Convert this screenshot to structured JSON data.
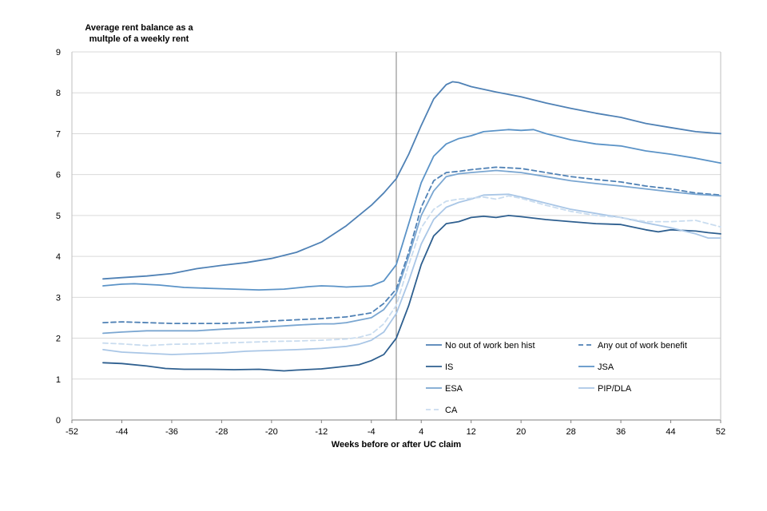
{
  "chart_data": {
    "type": "line",
    "ylabel": "Average rent balance as a multple of a weekly rent",
    "ylabel_lines": [
      "Average rent balance as a",
      "multple of a weekly rent"
    ],
    "xlabel": "Weeks before or after UC claim",
    "xlim": [
      -52,
      52
    ],
    "ylim": [
      0,
      9
    ],
    "xticks": [
      -52,
      -44,
      -36,
      -28,
      -20,
      -12,
      -4,
      4,
      12,
      20,
      28,
      36,
      44,
      52
    ],
    "yticks": [
      0,
      1,
      2,
      3,
      4,
      5,
      6,
      7,
      8,
      9
    ],
    "grid": "horizontal",
    "reference_line_x": 0,
    "legend_position": "bottom-right",
    "series": [
      {
        "name": "No out of work ben hist",
        "color": "#4f81b5",
        "dash": "solid",
        "points": [
          [
            -47,
            3.45
          ],
          [
            -44,
            3.48
          ],
          [
            -40,
            3.52
          ],
          [
            -36,
            3.58
          ],
          [
            -32,
            3.7
          ],
          [
            -28,
            3.78
          ],
          [
            -24,
            3.85
          ],
          [
            -20,
            3.95
          ],
          [
            -16,
            4.1
          ],
          [
            -12,
            4.35
          ],
          [
            -8,
            4.75
          ],
          [
            -4,
            5.25
          ],
          [
            -2,
            5.55
          ],
          [
            0,
            5.9
          ],
          [
            2,
            6.5
          ],
          [
            4,
            7.2
          ],
          [
            6,
            7.85
          ],
          [
            8,
            8.2
          ],
          [
            9,
            8.27
          ],
          [
            10,
            8.25
          ],
          [
            12,
            8.15
          ],
          [
            16,
            8.02
          ],
          [
            20,
            7.9
          ],
          [
            24,
            7.75
          ],
          [
            28,
            7.62
          ],
          [
            32,
            7.5
          ],
          [
            36,
            7.4
          ],
          [
            40,
            7.25
          ],
          [
            44,
            7.15
          ],
          [
            48,
            7.05
          ],
          [
            52,
            7.0
          ]
        ]
      },
      {
        "name": "Any out of work benefit",
        "color": "#4f81b5",
        "dash": "dashed",
        "points": [
          [
            -47,
            2.38
          ],
          [
            -44,
            2.4
          ],
          [
            -40,
            2.38
          ],
          [
            -36,
            2.36
          ],
          [
            -32,
            2.36
          ],
          [
            -28,
            2.36
          ],
          [
            -24,
            2.38
          ],
          [
            -20,
            2.42
          ],
          [
            -16,
            2.45
          ],
          [
            -12,
            2.48
          ],
          [
            -8,
            2.52
          ],
          [
            -4,
            2.62
          ],
          [
            -2,
            2.85
          ],
          [
            0,
            3.2
          ],
          [
            2,
            4.1
          ],
          [
            4,
            5.2
          ],
          [
            6,
            5.85
          ],
          [
            8,
            6.05
          ],
          [
            10,
            6.08
          ],
          [
            12,
            6.12
          ],
          [
            16,
            6.18
          ],
          [
            20,
            6.15
          ],
          [
            24,
            6.05
          ],
          [
            28,
            5.95
          ],
          [
            32,
            5.88
          ],
          [
            36,
            5.82
          ],
          [
            40,
            5.72
          ],
          [
            44,
            5.65
          ],
          [
            48,
            5.55
          ],
          [
            52,
            5.5
          ]
        ]
      },
      {
        "name": "IS",
        "color": "#2e5f8f",
        "dash": "solid",
        "points": [
          [
            -47,
            1.4
          ],
          [
            -44,
            1.38
          ],
          [
            -40,
            1.32
          ],
          [
            -37,
            1.26
          ],
          [
            -34,
            1.24
          ],
          [
            -30,
            1.24
          ],
          [
            -26,
            1.23
          ],
          [
            -22,
            1.24
          ],
          [
            -20,
            1.22
          ],
          [
            -18,
            1.2
          ],
          [
            -16,
            1.22
          ],
          [
            -12,
            1.25
          ],
          [
            -10,
            1.28
          ],
          [
            -6,
            1.35
          ],
          [
            -4,
            1.45
          ],
          [
            -2,
            1.6
          ],
          [
            0,
            2.0
          ],
          [
            2,
            2.8
          ],
          [
            4,
            3.8
          ],
          [
            6,
            4.5
          ],
          [
            8,
            4.8
          ],
          [
            10,
            4.85
          ],
          [
            12,
            4.95
          ],
          [
            14,
            4.98
          ],
          [
            16,
            4.95
          ],
          [
            18,
            5.0
          ],
          [
            20,
            4.97
          ],
          [
            24,
            4.9
          ],
          [
            28,
            4.85
          ],
          [
            32,
            4.8
          ],
          [
            36,
            4.78
          ],
          [
            40,
            4.65
          ],
          [
            42,
            4.6
          ],
          [
            44,
            4.65
          ],
          [
            48,
            4.62
          ],
          [
            50,
            4.58
          ],
          [
            52,
            4.55
          ]
        ]
      },
      {
        "name": "JSA",
        "color": "#5b93c7",
        "dash": "solid",
        "points": [
          [
            -47,
            3.28
          ],
          [
            -44,
            3.32
          ],
          [
            -42,
            3.33
          ],
          [
            -38,
            3.3
          ],
          [
            -34,
            3.24
          ],
          [
            -30,
            3.22
          ],
          [
            -26,
            3.2
          ],
          [
            -22,
            3.18
          ],
          [
            -18,
            3.2
          ],
          [
            -14,
            3.26
          ],
          [
            -12,
            3.28
          ],
          [
            -10,
            3.27
          ],
          [
            -8,
            3.25
          ],
          [
            -4,
            3.28
          ],
          [
            -2,
            3.4
          ],
          [
            0,
            3.8
          ],
          [
            2,
            4.8
          ],
          [
            4,
            5.8
          ],
          [
            6,
            6.45
          ],
          [
            8,
            6.75
          ],
          [
            10,
            6.88
          ],
          [
            12,
            6.95
          ],
          [
            14,
            7.05
          ],
          [
            18,
            7.1
          ],
          [
            20,
            7.08
          ],
          [
            22,
            7.1
          ],
          [
            24,
            7.0
          ],
          [
            28,
            6.85
          ],
          [
            32,
            6.75
          ],
          [
            36,
            6.7
          ],
          [
            40,
            6.58
          ],
          [
            44,
            6.5
          ],
          [
            48,
            6.4
          ],
          [
            52,
            6.28
          ]
        ]
      },
      {
        "name": "ESA",
        "color": "#7aa6d1",
        "dash": "solid",
        "points": [
          [
            -47,
            2.12
          ],
          [
            -44,
            2.15
          ],
          [
            -40,
            2.18
          ],
          [
            -36,
            2.18
          ],
          [
            -32,
            2.18
          ],
          [
            -28,
            2.22
          ],
          [
            -24,
            2.25
          ],
          [
            -20,
            2.28
          ],
          [
            -16,
            2.32
          ],
          [
            -12,
            2.35
          ],
          [
            -10,
            2.35
          ],
          [
            -8,
            2.38
          ],
          [
            -4,
            2.5
          ],
          [
            -2,
            2.7
          ],
          [
            0,
            3.1
          ],
          [
            2,
            4.0
          ],
          [
            4,
            5.0
          ],
          [
            6,
            5.6
          ],
          [
            8,
            5.95
          ],
          [
            10,
            6.02
          ],
          [
            12,
            6.05
          ],
          [
            16,
            6.1
          ],
          [
            20,
            6.05
          ],
          [
            24,
            5.95
          ],
          [
            28,
            5.85
          ],
          [
            32,
            5.78
          ],
          [
            36,
            5.72
          ],
          [
            40,
            5.65
          ],
          [
            44,
            5.58
          ],
          [
            48,
            5.52
          ],
          [
            52,
            5.48
          ]
        ]
      },
      {
        "name": "PIP/DLA",
        "color": "#a9c6e6",
        "dash": "solid",
        "points": [
          [
            -47,
            1.72
          ],
          [
            -44,
            1.66
          ],
          [
            -40,
            1.63
          ],
          [
            -36,
            1.6
          ],
          [
            -32,
            1.62
          ],
          [
            -28,
            1.64
          ],
          [
            -24,
            1.68
          ],
          [
            -20,
            1.7
          ],
          [
            -16,
            1.72
          ],
          [
            -12,
            1.75
          ],
          [
            -8,
            1.8
          ],
          [
            -6,
            1.85
          ],
          [
            -4,
            1.95
          ],
          [
            -2,
            2.15
          ],
          [
            0,
            2.6
          ],
          [
            2,
            3.4
          ],
          [
            4,
            4.3
          ],
          [
            6,
            4.9
          ],
          [
            8,
            5.2
          ],
          [
            10,
            5.32
          ],
          [
            12,
            5.4
          ],
          [
            14,
            5.5
          ],
          [
            18,
            5.52
          ],
          [
            20,
            5.45
          ],
          [
            24,
            5.3
          ],
          [
            28,
            5.15
          ],
          [
            32,
            5.05
          ],
          [
            36,
            4.95
          ],
          [
            40,
            4.82
          ],
          [
            44,
            4.7
          ],
          [
            48,
            4.55
          ],
          [
            50,
            4.45
          ],
          [
            52,
            4.45
          ]
        ]
      },
      {
        "name": "CA",
        "color": "#c9dcef",
        "dash": "dashed",
        "points": [
          [
            -47,
            1.88
          ],
          [
            -44,
            1.86
          ],
          [
            -40,
            1.82
          ],
          [
            -36,
            1.85
          ],
          [
            -32,
            1.86
          ],
          [
            -28,
            1.88
          ],
          [
            -24,
            1.9
          ],
          [
            -20,
            1.92
          ],
          [
            -16,
            1.93
          ],
          [
            -12,
            1.95
          ],
          [
            -8,
            1.98
          ],
          [
            -6,
            2.02
          ],
          [
            -4,
            2.1
          ],
          [
            -2,
            2.35
          ],
          [
            0,
            2.8
          ],
          [
            2,
            3.8
          ],
          [
            4,
            4.7
          ],
          [
            6,
            5.15
          ],
          [
            8,
            5.35
          ],
          [
            10,
            5.4
          ],
          [
            12,
            5.42
          ],
          [
            14,
            5.45
          ],
          [
            16,
            5.4
          ],
          [
            18,
            5.48
          ],
          [
            20,
            5.42
          ],
          [
            24,
            5.25
          ],
          [
            28,
            5.1
          ],
          [
            32,
            5.0
          ],
          [
            36,
            4.95
          ],
          [
            40,
            4.85
          ],
          [
            44,
            4.85
          ],
          [
            48,
            4.88
          ],
          [
            50,
            4.8
          ],
          [
            52,
            4.72
          ]
        ]
      }
    ]
  }
}
